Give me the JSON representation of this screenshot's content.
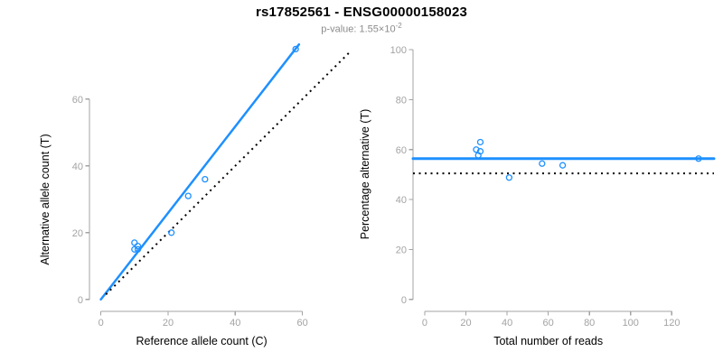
{
  "header": {
    "title": "rs17852561 - ENSG00000158023",
    "subtitle_base": "p-value: 1.55×10",
    "subtitle_exponent": "-2"
  },
  "colors": {
    "accent": "#1E90FF",
    "black": "#000000",
    "axis": "#A3A3A3",
    "point": "#1E90FF"
  },
  "chart_data": [
    {
      "type": "scatter",
      "name": "allele-counts-scatter",
      "xlabel": "Reference allele count (C)",
      "ylabel": "Alternative allele count (T)",
      "x_ticks": [
        0,
        20,
        40,
        60
      ],
      "y_ticks": [
        0,
        20,
        40,
        60
      ],
      "xlim": [
        -3.4,
        77.6
      ],
      "ylim": [
        -3.3,
        77.8
      ],
      "grid": false,
      "points": [
        [
          10,
          17
        ],
        [
          10,
          15
        ],
        [
          11,
          16
        ],
        [
          11,
          15
        ],
        [
          21,
          20
        ],
        [
          26,
          31
        ],
        [
          31,
          36
        ],
        [
          58,
          75
        ]
      ],
      "lines": [
        {
          "name": "fit-line",
          "style": "solid",
          "color_key": "accent",
          "width": 2.5,
          "x1": 0,
          "y1": 0,
          "x2": 59,
          "y2": 76.4
        },
        {
          "name": "identity-line",
          "style": "dotted",
          "color_key": "black",
          "width": 2,
          "x1": 1.5,
          "y1": 1.5,
          "x2": 74.6,
          "y2": 74.6
        }
      ]
    },
    {
      "type": "scatter",
      "name": "percentage-vs-reads-scatter",
      "xlabel": "Total number of reads",
      "ylabel": "Percentage alternative (T)",
      "x_ticks": [
        0,
        20,
        40,
        60,
        80,
        100,
        120
      ],
      "y_ticks": [
        0,
        20,
        40,
        60,
        80,
        100
      ],
      "xlim": [
        -5.7,
        140.5
      ],
      "ylim": [
        -4.4,
        104.0
      ],
      "grid": false,
      "points": [
        [
          27,
          63.0
        ],
        [
          25,
          60.0
        ],
        [
          27,
          59.3
        ],
        [
          26,
          57.7
        ],
        [
          41,
          48.8
        ],
        [
          57,
          54.4
        ],
        [
          67,
          53.7
        ],
        [
          133,
          56.4
        ]
      ],
      "lines": [
        {
          "name": "mean-percentage-line",
          "style": "solid",
          "color_key": "accent",
          "width": 3,
          "span": "full",
          "y": 56.4
        },
        {
          "name": "fifty-percent-line",
          "style": "dotted",
          "color_key": "black",
          "width": 2,
          "span": "full",
          "y": 50.5
        }
      ]
    }
  ]
}
